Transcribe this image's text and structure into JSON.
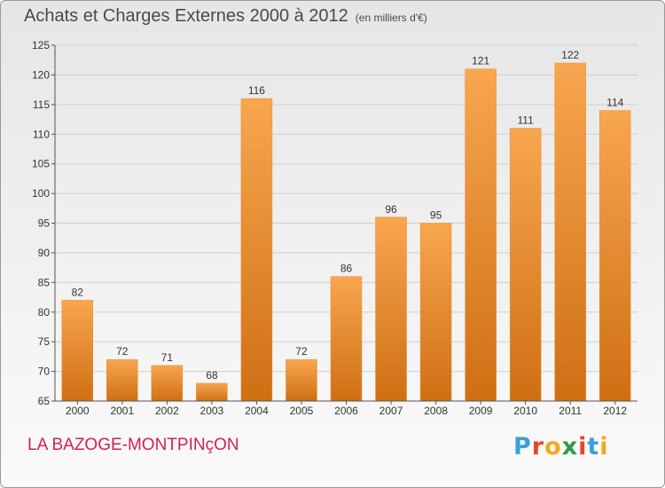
{
  "header": {
    "title": "Achats et Charges Externes 2000 à 2012",
    "unit": "(en milliers d'€)"
  },
  "footer": {
    "commune": "LA BAZOGE-MONTPINçON",
    "logo_letters": [
      "P",
      "r",
      "o",
      "x",
      "i",
      "t",
      "i"
    ],
    "logo_colors": [
      "#3a9fd8",
      "#e8442b",
      "#f5a623",
      "#2d9b48",
      "#e8442b",
      "#3a9fd8",
      "#f5a623"
    ]
  },
  "colors": {
    "bar_light": "#f8a64f",
    "bar_dark": "#cf6f14",
    "grid": "#cfcfcf",
    "axis": "#555555",
    "text": "#333333"
  },
  "chart_data": {
    "type": "bar",
    "categories": [
      "2000",
      "2001",
      "2002",
      "2003",
      "2004",
      "2005",
      "2006",
      "2007",
      "2008",
      "2009",
      "2010",
      "2011",
      "2012"
    ],
    "values": [
      82,
      72,
      71,
      68,
      116,
      72,
      86,
      96,
      95,
      121,
      111,
      122,
      114
    ],
    "title": "Achats et Charges Externes 2000 à 2012",
    "subtitle": "(en milliers d'€)",
    "ylim": [
      65,
      125
    ],
    "yticks": [
      65,
      70,
      75,
      80,
      85,
      90,
      95,
      100,
      105,
      110,
      115,
      120,
      125
    ],
    "grid": true,
    "data_labels": true
  }
}
